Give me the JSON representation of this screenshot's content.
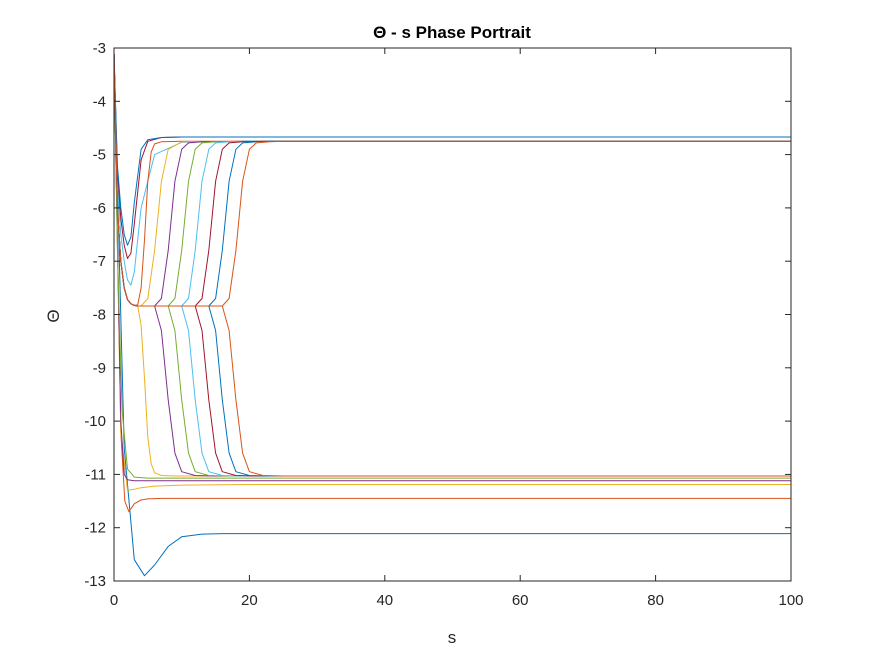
{
  "chart_data": {
    "type": "line",
    "title": "Θ - s Phase Portrait",
    "xlabel": "s",
    "ylabel": "Θ",
    "xlim": [
      0,
      100
    ],
    "ylim": [
      -13,
      -3
    ],
    "xticks": [
      0,
      20,
      40,
      60,
      80,
      100
    ],
    "yticks": [
      -3,
      -4,
      -5,
      -6,
      -7,
      -8,
      -9,
      -10,
      -11,
      -12,
      -13
    ],
    "grid": false,
    "legend": "none",
    "start_value": -3.1,
    "series_colors": [
      "#0072BD",
      "#D95319",
      "#EDB120",
      "#7E2F8E",
      "#77AC30",
      "#4DBEEE",
      "#A2142F"
    ],
    "series": [
      {
        "x": [
          0,
          1.5,
          3,
          4.5,
          6,
          8,
          10,
          13,
          16,
          20,
          30,
          50,
          100
        ],
        "y": [
          -3.1,
          -10.5,
          -12.6,
          -12.9,
          -12.7,
          -12.35,
          -12.17,
          -12.12,
          -12.11,
          -12.11,
          -12.11,
          -12.11,
          -12.11
        ]
      },
      {
        "x": [
          0,
          1,
          1.6,
          2.2,
          3,
          4,
          5,
          7,
          10,
          20,
          50,
          100
        ],
        "y": [
          -3.1,
          -10.2,
          -11.5,
          -11.7,
          -11.55,
          -11.48,
          -11.46,
          -11.45,
          -11.45,
          -11.45,
          -11.45,
          -11.45
        ]
      },
      {
        "x": [
          0,
          1,
          2,
          3,
          4,
          6,
          10,
          20,
          50,
          100
        ],
        "y": [
          -3.1,
          -10.2,
          -11.3,
          -11.28,
          -11.25,
          -11.22,
          -11.2,
          -11.19,
          -11.19,
          -11.19
        ]
      },
      {
        "x": [
          0,
          1,
          1.5,
          2,
          3,
          5,
          10,
          20,
          50,
          100
        ],
        "y": [
          -3.1,
          -10.0,
          -11.0,
          -11.1,
          -11.12,
          -11.12,
          -11.12,
          -11.12,
          -11.12,
          -11.12
        ]
      },
      {
        "x": [
          0,
          0.5,
          1.2,
          2,
          3,
          5,
          10,
          20,
          50,
          100
        ],
        "y": [
          -3.1,
          -6.8,
          -9.8,
          -10.9,
          -11.05,
          -11.07,
          -11.07,
          -11.07,
          -11.07,
          -11.07
        ]
      },
      {
        "x": [
          0,
          0.5,
          1,
          1.5,
          2,
          2.5,
          3,
          4,
          6,
          10,
          20,
          50,
          100
        ],
        "y": [
          -3.1,
          -5.5,
          -6.5,
          -7.0,
          -7.35,
          -7.45,
          -7.2,
          -6.0,
          -5.0,
          -4.77,
          -4.75,
          -4.75,
          -4.75
        ]
      },
      {
        "x": [
          0,
          0.5,
          1,
          1.5,
          2,
          2.5,
          3,
          4,
          5,
          7,
          10,
          20,
          50,
          100
        ],
        "y": [
          -3.1,
          -5.3,
          -6.2,
          -6.7,
          -6.95,
          -6.85,
          -6.3,
          -5.1,
          -4.75,
          -4.68,
          -4.67,
          -4.67,
          -4.67,
          -4.67
        ]
      },
      {
        "x": [
          0,
          0.5,
          1,
          1.5,
          2,
          2.5,
          3,
          4,
          5,
          7,
          10,
          20,
          50,
          100
        ],
        "y": [
          -3.1,
          -5.2,
          -6.0,
          -6.5,
          -6.7,
          -6.55,
          -5.9,
          -4.9,
          -4.72,
          -4.68,
          -4.67,
          -4.67,
          -4.67,
          -4.67
        ]
      },
      {
        "x": [
          0,
          0.5,
          1,
          1.5,
          2,
          2.5,
          3,
          3.5,
          4,
          4.5,
          5,
          5.5,
          6,
          7,
          10,
          20,
          50,
          100
        ],
        "y": [
          -3.1,
          -6.0,
          -7.0,
          -7.5,
          -7.72,
          -7.8,
          -7.83,
          -7.82,
          -7.5,
          -6.6,
          -5.5,
          -4.95,
          -4.8,
          -4.76,
          -4.75,
          -4.75,
          -4.75,
          -4.75
        ]
      },
      {
        "x": [
          0,
          0.5,
          1,
          1.5,
          2,
          2.5,
          3,
          3.5,
          4,
          5,
          6,
          7,
          8,
          10,
          20,
          50,
          100
        ],
        "y": [
          -3.1,
          -6.0,
          -7.0,
          -7.5,
          -7.72,
          -7.8,
          -7.83,
          -7.84,
          -7.84,
          -7.7,
          -6.8,
          -5.5,
          -4.9,
          -4.76,
          -4.75,
          -4.75,
          -4.75
        ]
      },
      {
        "x": [
          0,
          0.5,
          1,
          1.5,
          2,
          2.5,
          3,
          3.5,
          4,
          6,
          7,
          8,
          9,
          10,
          11,
          13,
          20,
          50,
          100
        ],
        "y": [
          -3.1,
          -6.0,
          -7.0,
          -7.5,
          -7.72,
          -7.8,
          -7.83,
          -7.84,
          -7.84,
          -7.84,
          -7.7,
          -6.8,
          -5.5,
          -4.9,
          -4.78,
          -4.76,
          -4.75,
          -4.75,
          -4.75
        ]
      },
      {
        "x": [
          0,
          0.5,
          1,
          1.5,
          2,
          2.5,
          3,
          3.5,
          4,
          8,
          9,
          10,
          11,
          12,
          13,
          15,
          20,
          50,
          100
        ],
        "y": [
          -3.1,
          -6.0,
          -7.0,
          -7.5,
          -7.72,
          -7.8,
          -7.83,
          -7.84,
          -7.84,
          -7.84,
          -7.7,
          -6.8,
          -5.5,
          -4.9,
          -4.78,
          -4.76,
          -4.75,
          -4.75,
          -4.75
        ]
      },
      {
        "x": [
          0,
          0.5,
          1,
          1.5,
          2,
          2.5,
          3,
          3.5,
          4,
          10,
          11,
          12,
          13,
          14,
          15,
          17,
          20,
          50,
          100
        ],
        "y": [
          -3.1,
          -6.0,
          -7.0,
          -7.5,
          -7.72,
          -7.8,
          -7.83,
          -7.84,
          -7.84,
          -7.84,
          -7.7,
          -6.8,
          -5.5,
          -4.9,
          -4.78,
          -4.76,
          -4.75,
          -4.75,
          -4.75
        ]
      },
      {
        "x": [
          0,
          0.5,
          1,
          1.5,
          2,
          2.5,
          3,
          3.5,
          4,
          12,
          13,
          14,
          15,
          16,
          17,
          19,
          22,
          50,
          100
        ],
        "y": [
          -3.1,
          -6.0,
          -7.0,
          -7.5,
          -7.72,
          -7.8,
          -7.83,
          -7.84,
          -7.84,
          -7.84,
          -7.7,
          -6.8,
          -5.5,
          -4.9,
          -4.78,
          -4.76,
          -4.75,
          -4.75,
          -4.75
        ]
      },
      {
        "x": [
          0,
          0.5,
          1,
          1.5,
          2,
          2.5,
          3,
          3.5,
          4,
          14,
          15,
          16,
          17,
          18,
          19,
          21,
          23,
          50,
          100
        ],
        "y": [
          -3.1,
          -6.0,
          -7.0,
          -7.5,
          -7.72,
          -7.8,
          -7.83,
          -7.84,
          -7.84,
          -7.84,
          -7.7,
          -6.8,
          -5.5,
          -4.9,
          -4.78,
          -4.76,
          -4.75,
          -4.75,
          -4.75
        ]
      },
      {
        "x": [
          0,
          0.5,
          1,
          1.5,
          2,
          2.5,
          3,
          3.5,
          4,
          16,
          17,
          18,
          19,
          20,
          21,
          23,
          25,
          50,
          100
        ],
        "y": [
          -3.1,
          -6.0,
          -7.0,
          -7.5,
          -7.72,
          -7.8,
          -7.83,
          -7.84,
          -7.84,
          -7.84,
          -7.7,
          -6.8,
          -5.5,
          -4.9,
          -4.78,
          -4.76,
          -4.75,
          -4.75,
          -4.75
        ]
      },
      {
        "x": [
          0,
          0.5,
          1,
          1.5,
          2,
          2.5,
          3,
          3.5,
          4,
          4.5,
          5,
          5.5,
          6,
          7,
          9,
          12,
          20,
          50,
          100
        ],
        "y": [
          -3.1,
          -6.0,
          -7.0,
          -7.5,
          -7.72,
          -7.8,
          -7.83,
          -7.84,
          -8.2,
          -9.2,
          -10.3,
          -10.8,
          -10.97,
          -11.02,
          -11.03,
          -11.03,
          -11.03,
          -11.03,
          -11.03
        ]
      },
      {
        "x": [
          0,
          0.5,
          1,
          1.5,
          2,
          2.5,
          3,
          3.5,
          4,
          6,
          7,
          8,
          9,
          10,
          12,
          15,
          20,
          50,
          100
        ],
        "y": [
          -3.1,
          -6.0,
          -7.0,
          -7.5,
          -7.72,
          -7.8,
          -7.83,
          -7.84,
          -7.84,
          -7.84,
          -8.3,
          -9.6,
          -10.6,
          -10.95,
          -11.02,
          -11.03,
          -11.03,
          -11.03,
          -11.03
        ]
      },
      {
        "x": [
          0,
          0.5,
          1,
          1.5,
          2,
          2.5,
          3,
          3.5,
          4,
          8,
          9,
          10,
          11,
          12,
          14,
          17,
          22,
          50,
          100
        ],
        "y": [
          -3.1,
          -6.0,
          -7.0,
          -7.5,
          -7.72,
          -7.8,
          -7.83,
          -7.84,
          -7.84,
          -7.84,
          -8.3,
          -9.6,
          -10.6,
          -10.95,
          -11.02,
          -11.03,
          -11.03,
          -11.03,
          -11.03
        ]
      },
      {
        "x": [
          0,
          0.5,
          1,
          1.5,
          2,
          2.5,
          3,
          3.5,
          4,
          10,
          11,
          12,
          13,
          14,
          16,
          19,
          24,
          50,
          100
        ],
        "y": [
          -3.1,
          -6.0,
          -7.0,
          -7.5,
          -7.72,
          -7.8,
          -7.83,
          -7.84,
          -7.84,
          -7.84,
          -8.3,
          -9.6,
          -10.6,
          -10.95,
          -11.02,
          -11.03,
          -11.03,
          -11.03,
          -11.03
        ]
      },
      {
        "x": [
          0,
          0.5,
          1,
          1.5,
          2,
          2.5,
          3,
          3.5,
          4,
          12,
          13,
          14,
          15,
          16,
          18,
          21,
          26,
          50,
          100
        ],
        "y": [
          -3.1,
          -6.0,
          -7.0,
          -7.5,
          -7.72,
          -7.8,
          -7.83,
          -7.84,
          -7.84,
          -7.84,
          -8.3,
          -9.6,
          -10.6,
          -10.95,
          -11.02,
          -11.03,
          -11.03,
          -11.03,
          -11.03
        ]
      },
      {
        "x": [
          0,
          0.5,
          1,
          1.5,
          2,
          2.5,
          3,
          3.5,
          4,
          14,
          15,
          16,
          17,
          18,
          20,
          23,
          28,
          50,
          100
        ],
        "y": [
          -3.1,
          -6.0,
          -7.0,
          -7.5,
          -7.72,
          -7.8,
          -7.83,
          -7.84,
          -7.84,
          -7.84,
          -8.3,
          -9.6,
          -10.6,
          -10.95,
          -11.02,
          -11.03,
          -11.03,
          -11.03,
          -11.03
        ]
      },
      {
        "x": [
          0,
          0.5,
          1,
          1.5,
          2,
          2.5,
          3,
          3.5,
          4,
          16,
          17,
          18,
          19,
          20,
          22,
          25,
          30,
          50,
          100
        ],
        "y": [
          -3.1,
          -6.0,
          -7.0,
          -7.5,
          -7.72,
          -7.8,
          -7.83,
          -7.84,
          -7.84,
          -7.84,
          -8.3,
          -9.6,
          -10.6,
          -10.95,
          -11.02,
          -11.03,
          -11.03,
          -11.03,
          -11.03
        ]
      }
    ]
  }
}
